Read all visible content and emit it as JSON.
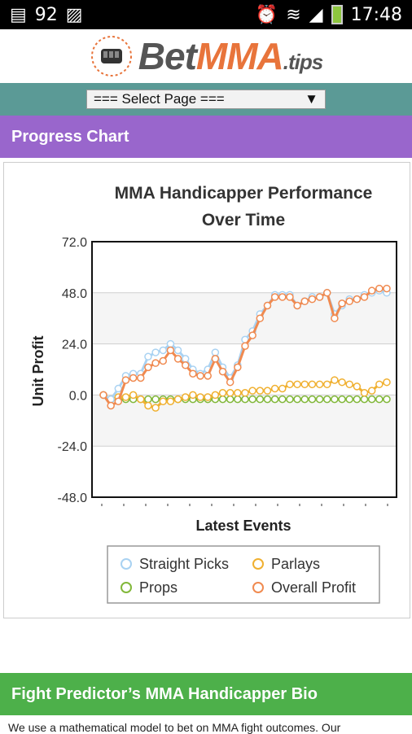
{
  "status_bar": {
    "notification_count": "92",
    "time": "17:48"
  },
  "header": {
    "logo_bet": "Bet",
    "logo_mma": "MMA",
    "logo_tips": ".tips"
  },
  "nav": {
    "select_value": "=== Select Page ==="
  },
  "section_progress": {
    "title": "Progress Chart"
  },
  "section_bio": {
    "title": "Fight Predictor’s MMA Handicapper Bio",
    "text": "We use a mathematical model to bet on MMA fight outcomes. Our"
  },
  "colors": {
    "straight_picks": "#a9d2f2",
    "parlays": "#f0b030",
    "props": "#82b83a",
    "overall_profit": "#f08a50"
  },
  "chart_data": {
    "type": "line",
    "title": "MMA Handicapper Performance Over Time",
    "xlabel": "Latest Events",
    "ylabel": "Unit Profit",
    "ylim": [
      -48,
      72
    ],
    "yticks": [
      "72.0",
      "48.0",
      "24.0",
      "0.0",
      "-24.0",
      "-48.0"
    ],
    "legend_position": "bottom",
    "series": [
      {
        "name": "Straight Picks",
        "values": [
          0,
          -2,
          3,
          9,
          10,
          10,
          18,
          20,
          21,
          24,
          21,
          17,
          12,
          10,
          12,
          20,
          13,
          8,
          14,
          26,
          30,
          38,
          42,
          47,
          47,
          47,
          42,
          44,
          46,
          46,
          48,
          38,
          42,
          45,
          45,
          47,
          48,
          49,
          48
        ]
      },
      {
        "name": "Parlays",
        "values": [
          0,
          -2,
          -1,
          -1,
          0,
          -2,
          -5,
          -6,
          -3,
          -3,
          -2,
          -1,
          0,
          -1,
          -1,
          0,
          1,
          1,
          1,
          1,
          2,
          2,
          2,
          3,
          3,
          5,
          5,
          5,
          5,
          5,
          5,
          7,
          6,
          5,
          4,
          1,
          2,
          5,
          6
        ]
      },
      {
        "name": "Props",
        "values": [
          0,
          -2,
          -2,
          -2,
          -2,
          -2,
          -2,
          -2,
          -2,
          -2,
          -2,
          -2,
          -2,
          -2,
          -2,
          -2,
          -2,
          -2,
          -2,
          -2,
          -2,
          -2,
          -2,
          -2,
          -2,
          -2,
          -2,
          -2,
          -2,
          -2,
          -2,
          -2,
          -2,
          -2,
          -2,
          -2,
          -2,
          -2,
          -2
        ]
      },
      {
        "name": "Overall Profit",
        "values": [
          0,
          -5,
          -3,
          7,
          8,
          8,
          13,
          15,
          16,
          21,
          17,
          14,
          10,
          9,
          9,
          17,
          11,
          6,
          13,
          23,
          28,
          36,
          42,
          46,
          46,
          46,
          42,
          44,
          45,
          46,
          48,
          36,
          43,
          44,
          45,
          46,
          49,
          50,
          50
        ]
      }
    ]
  }
}
